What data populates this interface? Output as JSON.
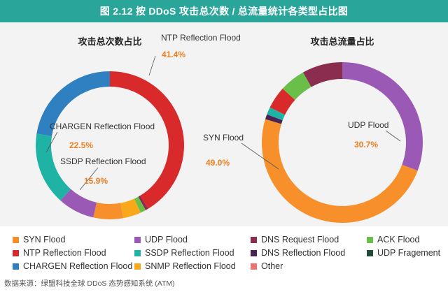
{
  "header": {
    "title": "图 2.12 按 DDoS 攻击总次数 / 总流量统计各类型占比图"
  },
  "legend": [
    {
      "label": "SYN Flood",
      "color": "#f7902a"
    },
    {
      "label": "UDP Flood",
      "color": "#9b59b6"
    },
    {
      "label": "DNS Request Flood",
      "color": "#8b2d4f"
    },
    {
      "label": "ACK Flood",
      "color": "#6abf4b"
    },
    {
      "label": "NTP Reflection Flood",
      "color": "#d82a2a"
    },
    {
      "label": "SSDP Reflection Flood",
      "color": "#1fb3a5"
    },
    {
      "label": "DNS Reflection Flood",
      "color": "#4a2355"
    },
    {
      "label": "UDP Fragement",
      "color": "#1f4d38"
    },
    {
      "label": "CHARGEN Reflection Flood",
      "color": "#2e80c0"
    },
    {
      "label": "SNMP Reflection Flood",
      "color": "#f9a81c"
    },
    {
      "label": "Other",
      "color": "#f07373"
    }
  ],
  "footer": {
    "source": "数据来源：绿盟科技全球 DDoS 态势感知系统 (ATM)"
  },
  "chart_data": [
    {
      "type": "pie",
      "title": "攻击总次数占比",
      "series": [
        {
          "name": "NTP Reflection Flood",
          "value": 41.4,
          "label": "41.4%",
          "color": "#d82a2a"
        },
        {
          "name": "DNS Request Flood",
          "value": 0.6,
          "label": "",
          "color": "#8b2d4f"
        },
        {
          "name": "ACK Flood",
          "value": 1.2,
          "label": "",
          "color": "#6abf4b"
        },
        {
          "name": "SNMP Reflection Flood",
          "value": 3.9,
          "label": "",
          "color": "#f9a81c"
        },
        {
          "name": "SYN Flood",
          "value": 6.5,
          "label": "",
          "color": "#f7902a"
        },
        {
          "name": "UDP Flood",
          "value": 8.0,
          "label": "",
          "color": "#9b59b6"
        },
        {
          "name": "SSDP Reflection Flood",
          "value": 15.9,
          "label": "15.9%",
          "color": "#1fb3a5"
        },
        {
          "name": "CHARGEN Reflection Flood",
          "value": 22.5,
          "label": "22.5%",
          "color": "#2e80c0"
        }
      ]
    },
    {
      "type": "pie",
      "title": "攻击总流量占比",
      "series": [
        {
          "name": "UDP Flood",
          "value": 30.7,
          "label": "30.7%",
          "color": "#9b59b6"
        },
        {
          "name": "SYN Flood",
          "value": 49.0,
          "label": "49.0%",
          "color": "#f7902a"
        },
        {
          "name": "DNS Reflection Flood",
          "value": 1.0,
          "label": "",
          "color": "#4a2355"
        },
        {
          "name": "SSDP Reflection Flood",
          "value": 1.5,
          "label": "",
          "color": "#1fb3a5"
        },
        {
          "name": "NTP Reflection Flood",
          "value": 4.5,
          "label": "",
          "color": "#d82a2a"
        },
        {
          "name": "ACK Flood",
          "value": 5.2,
          "label": "",
          "color": "#6abf4b"
        },
        {
          "name": "DNS Request Flood",
          "value": 8.1,
          "label": "",
          "color": "#8b2d4f"
        }
      ]
    }
  ]
}
